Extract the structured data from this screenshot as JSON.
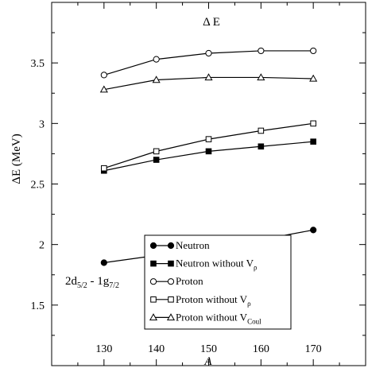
{
  "chart_data": {
    "type": "line",
    "title": "Δ E",
    "xlabel": "A",
    "ylabel": "ΔE (MeV)",
    "xlim": [
      120,
      180
    ],
    "ylim": [
      1.0,
      4.0
    ],
    "x_ticks": [
      "130",
      "140",
      "150",
      "160",
      "170"
    ],
    "y_ticks": [
      "1.5",
      "2",
      "2.5",
      "3",
      "3.5"
    ],
    "x": [
      130,
      140,
      150,
      160,
      170
    ],
    "grid": false,
    "legend_position": "bottom-right",
    "annotation": {
      "main1": "2d",
      "sub1": "5/2",
      "mid": " - 1g",
      "sub2": "7/2"
    },
    "series": [
      {
        "name": "Neutron",
        "sub": "",
        "marker": "circle",
        "filled": true,
        "values": [
          1.85,
          1.91,
          1.97,
          2.04,
          2.12
        ]
      },
      {
        "name": "Neutron without V",
        "sub": "ρ",
        "marker": "square",
        "filled": true,
        "values": [
          2.61,
          2.7,
          2.77,
          2.81,
          2.85
        ]
      },
      {
        "name": "Proton",
        "sub": "",
        "marker": "circle",
        "filled": false,
        "values": [
          3.4,
          3.53,
          3.58,
          3.6,
          3.6
        ]
      },
      {
        "name": "Proton without V",
        "sub": "ρ",
        "marker": "square",
        "filled": false,
        "values": [
          2.63,
          2.77,
          2.87,
          2.94,
          3.0
        ]
      },
      {
        "name": "Proton without V",
        "sub": "Coul",
        "marker": "triangle",
        "filled": false,
        "values": [
          3.28,
          3.36,
          3.38,
          3.38,
          3.37
        ]
      }
    ]
  }
}
